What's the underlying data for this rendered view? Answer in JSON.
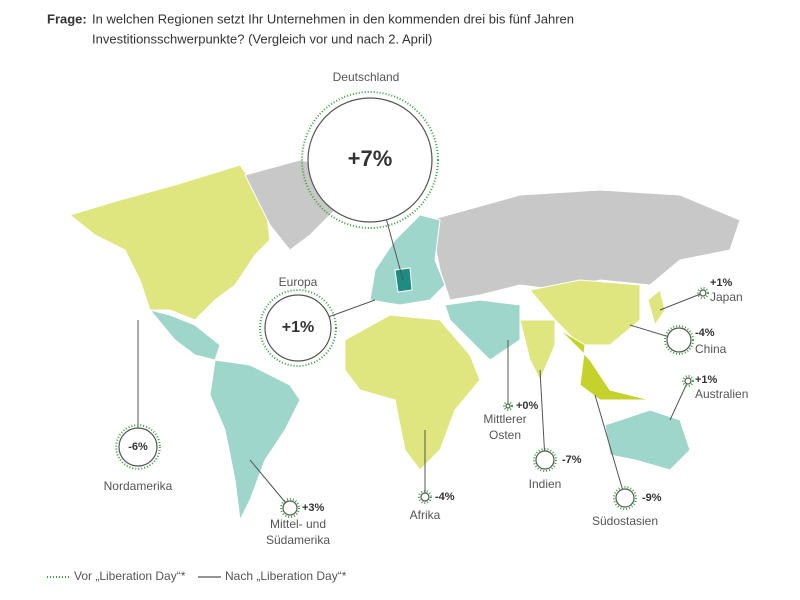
{
  "header": {
    "label": "Frage:",
    "lines": [
      "In welchen Regionen setzt Ihr Unternehmen in den kommenden drei bis fünf Jahren",
      "Investitionsschwerpunkte? (Vergleich vor und nach 2. April)"
    ]
  },
  "regions": [
    {
      "label": [
        "Deutschland"
      ],
      "value": "+7%"
    },
    {
      "label": [
        "Europa"
      ],
      "value": "+1%"
    },
    {
      "label": [
        "Nordamerika"
      ],
      "value": "-6%"
    },
    {
      "label": [
        "Mittel- und",
        "Südamerika"
      ],
      "value": "+3%"
    },
    {
      "label": [
        "Afrika"
      ],
      "value": "-4%"
    },
    {
      "label": [
        "Mittlerer",
        "Osten"
      ],
      "value": "+0%"
    },
    {
      "label": [
        "Indien"
      ],
      "value": "-7%"
    },
    {
      "label": [
        "Südostasien"
      ],
      "value": "-9%"
    },
    {
      "label": [
        "China"
      ],
      "value": "-4%"
    },
    {
      "label": [
        "Japan"
      ],
      "value": "+1%"
    },
    {
      "label": [
        "Australien"
      ],
      "value": "+1%"
    }
  ],
  "legend": [
    "Vor „Liberation Day“*",
    "Nach „Liberation Day“*"
  ]
}
